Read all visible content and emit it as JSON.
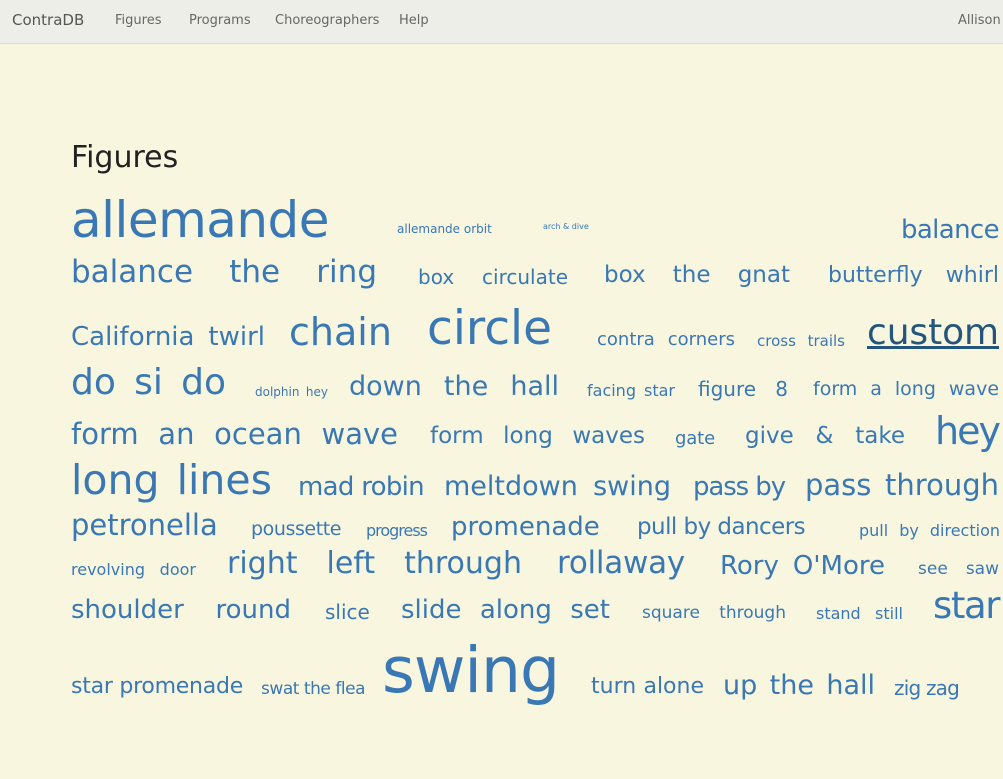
{
  "navbar": {
    "brand": "ContraDB",
    "links": [
      "Figures",
      "Programs",
      "Choreographers",
      "Help"
    ],
    "user": "Allison"
  },
  "page": {
    "title": "Figures"
  },
  "colors": {
    "link": "#3a78b5",
    "link_hover": "#24557f",
    "background": "#f8f6de",
    "navbar": "#eeeee9"
  },
  "figures": [
    {
      "label": "allemande",
      "weight": 5
    },
    {
      "label": "allemande orbit",
      "weight": 2
    },
    {
      "label": "arch & dive",
      "weight": 2
    },
    {
      "label": "balance",
      "weight": 3
    },
    {
      "label": "balance the ring",
      "weight": 3
    },
    {
      "label": "box circulate",
      "weight": 2
    },
    {
      "label": "box the gnat",
      "weight": 3
    },
    {
      "label": "butterfly whirl",
      "weight": 2
    },
    {
      "label": "California twirl",
      "weight": 3
    },
    {
      "label": "chain",
      "weight": 4
    },
    {
      "label": "circle",
      "weight": 5
    },
    {
      "label": "contra corners",
      "weight": 2
    },
    {
      "label": "cross trails",
      "weight": 1
    },
    {
      "label": "custom",
      "weight": 4,
      "hovered": true
    },
    {
      "label": "do si do",
      "weight": 4
    },
    {
      "label": "dolphin hey",
      "weight": 0
    },
    {
      "label": "down the hall",
      "weight": 3
    },
    {
      "label": "facing star",
      "weight": 1
    },
    {
      "label": "figure 8",
      "weight": 2
    },
    {
      "label": "form a long wave",
      "weight": 2
    },
    {
      "label": "form an ocean wave",
      "weight": 3
    },
    {
      "label": "form long waves",
      "weight": 2
    },
    {
      "label": "gate",
      "weight": 1
    },
    {
      "label": "give & take",
      "weight": 2
    },
    {
      "label": "hey",
      "weight": 4
    },
    {
      "label": "long lines",
      "weight": 4
    },
    {
      "label": "mad robin",
      "weight": 3
    },
    {
      "label": "meltdown swing",
      "weight": 3
    },
    {
      "label": "pass by",
      "weight": 3
    },
    {
      "label": "pass through",
      "weight": 3
    },
    {
      "label": "petronella",
      "weight": 3
    },
    {
      "label": "poussette",
      "weight": 2
    },
    {
      "label": "progress",
      "weight": 1
    },
    {
      "label": "promenade",
      "weight": 3
    },
    {
      "label": "pull by dancers",
      "weight": 2
    },
    {
      "label": "pull by direction",
      "weight": 1
    },
    {
      "label": "revolving door",
      "weight": 1
    },
    {
      "label": "right left through",
      "weight": 3
    },
    {
      "label": "rollaway",
      "weight": 3
    },
    {
      "label": "Rory O'More",
      "weight": 3
    },
    {
      "label": "see saw",
      "weight": 1
    },
    {
      "label": "shoulder round",
      "weight": 3
    },
    {
      "label": "slice",
      "weight": 2
    },
    {
      "label": "slide along set",
      "weight": 3
    },
    {
      "label": "square through",
      "weight": 1
    },
    {
      "label": "stand still",
      "weight": 1
    },
    {
      "label": "star",
      "weight": 4
    },
    {
      "label": "star promenade",
      "weight": 2
    },
    {
      "label": "swat the flea",
      "weight": 1
    },
    {
      "label": "swing",
      "weight": 6
    },
    {
      "label": "turn alone",
      "weight": 2
    },
    {
      "label": "up the hall",
      "weight": 3
    },
    {
      "label": "zig zag",
      "weight": 2
    }
  ]
}
